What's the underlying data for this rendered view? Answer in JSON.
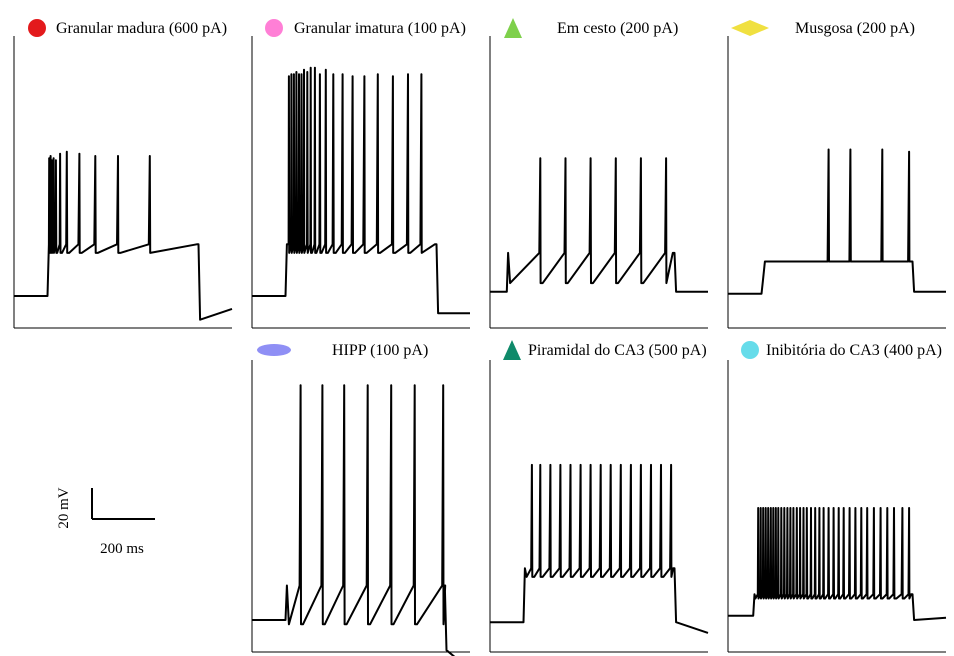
{
  "chart_data": [
    {
      "type": "line",
      "title": "Granular madura (600 pA)",
      "marker": {
        "shape": "circle",
        "color": "#e31a1c"
      },
      "baseline_mV": -72,
      "ylim": [
        -85,
        45
      ],
      "xlim": [
        0,
        1300
      ],
      "stim": {
        "on": 200,
        "off": 1100,
        "drop_mV": -83,
        "recovery_end_mV": -78
      },
      "spikes_ms": [
        210,
        218,
        226,
        236,
        250,
        275,
        315,
        390,
        485,
        620,
        810
      ],
      "peaks_mV": [
        -8,
        -7,
        -9,
        -8,
        -9,
        -6,
        -5,
        -6,
        -7,
        -7,
        -7
      ],
      "trough_mV": -52,
      "plateau_mV": -48,
      "ramp_mV": 0
    },
    {
      "type": "line",
      "title": "Granular imatura (100 pA)",
      "marker": {
        "shape": "circle",
        "color": "#ff7fd6"
      },
      "baseline_mV": -72,
      "ylim": [
        -85,
        45
      ],
      "xlim": [
        0,
        1300
      ],
      "stim": {
        "on": 200,
        "off": 1100,
        "drop_mV": -80,
        "recovery_end_mV": -80
      },
      "spikes_ms": [
        220,
        235,
        250,
        265,
        280,
        295,
        310,
        330,
        350,
        375,
        405,
        440,
        485,
        540,
        600,
        670,
        750,
        840,
        930,
        1010
      ],
      "peaks_mV": [
        30,
        31,
        31,
        32,
        31,
        31,
        33,
        32,
        34,
        34,
        31,
        33,
        31,
        31,
        30,
        30,
        31,
        30,
        31,
        31
      ],
      "trough_mV": -52,
      "plateau_mV": -48,
      "ramp_mV": 0
    },
    {
      "type": "line",
      "title": "Em cesto (200 pA)",
      "marker": {
        "shape": "triangle",
        "color": "#7ed04b"
      },
      "baseline_mV": -70,
      "ylim": [
        -85,
        45
      ],
      "xlim": [
        0,
        1300
      ],
      "stim": {
        "on": 100,
        "off": 1100,
        "drop_mV": -70,
        "recovery_end_mV": -70
      },
      "spikes_ms": [
        300,
        450,
        600,
        750,
        900,
        1050
      ],
      "peaks_mV": [
        -8,
        -8,
        -8,
        -8,
        -8,
        -8
      ],
      "trough_mV": -66,
      "plateau_mV": -52,
      "ramp_mV": 0
    },
    {
      "type": "line",
      "title": "Musgosa (200 pA)",
      "marker": {
        "shape": "diamond",
        "color": "#f0e040"
      },
      "baseline_mV": -71,
      "ylim": [
        -85,
        45
      ],
      "xlim": [
        0,
        1300
      ],
      "stim": {
        "on": 200,
        "off": 1100,
        "drop_mV": -70,
        "recovery_end_mV": -70
      },
      "spikes_ms": [
        600,
        730,
        920,
        1080
      ],
      "peaks_mV": [
        -4,
        -4,
        -4,
        -5
      ],
      "trough_mV": -56,
      "plateau_mV": -56,
      "ramp_mV": 9
    },
    {
      "type": "line",
      "title": "HIPP (100 pA)",
      "marker": {
        "shape": "ellipse",
        "color": "#8f8ff5"
      },
      "baseline_mV": -72,
      "ylim": [
        -85,
        45
      ],
      "xlim": [
        0,
        1300
      ],
      "stim": {
        "on": 200,
        "off": 1150,
        "drop_mV": -86,
        "recovery_end_mV": -95
      },
      "spikes_ms": [
        290,
        420,
        550,
        690,
        830,
        970,
        1140
      ],
      "peaks_mV": [
        37,
        37,
        37,
        37,
        37,
        37,
        37
      ],
      "trough_mV": -74,
      "plateau_mV": -56,
      "ramp_mV": 0
    },
    {
      "type": "line",
      "title": "Piramidal do CA3 (500 pA)",
      "marker": {
        "shape": "triangle",
        "color": "#0f8a6a"
      },
      "baseline_mV": -73,
      "ylim": [
        -85,
        45
      ],
      "xlim": [
        0,
        1300
      ],
      "stim": {
        "on": 200,
        "off": 1100,
        "drop_mV": -73,
        "recovery_end_mV": -78
      },
      "spikes_ms": [
        250,
        300,
        360,
        420,
        480,
        540,
        600,
        660,
        720,
        780,
        840,
        900,
        960,
        1020,
        1080
      ],
      "peaks_mV": [
        0,
        0,
        0,
        0,
        0,
        0,
        0,
        0,
        0,
        0,
        0,
        0,
        0,
        0,
        0
      ],
      "trough_mV": -52,
      "plateau_mV": -48,
      "ramp_mV": 0
    },
    {
      "type": "line",
      "title": "Inibitória do CA3 (400 pA)",
      "marker": {
        "shape": "circle",
        "color": "#66dcea"
      },
      "baseline_mV": -70,
      "ylim": [
        -85,
        45
      ],
      "xlim": [
        0,
        1300
      ],
      "stim": {
        "on": 150,
        "off": 1100,
        "drop_mV": -72,
        "recovery_end_mV": -71
      },
      "spikes_ms": [
        180,
        195,
        210,
        225,
        240,
        255,
        270,
        285,
        300,
        318,
        336,
        354,
        372,
        390,
        410,
        430,
        450,
        470,
        495,
        520,
        545,
        570,
        600,
        630,
        660,
        690,
        725,
        760,
        795,
        830,
        870,
        910,
        950,
        990,
        1040,
        1080
      ],
      "peaks_mV": [
        -20,
        -20,
        -20,
        -20,
        -20,
        -20,
        -20,
        -20,
        -20,
        -20,
        -20,
        -20,
        -20,
        -20,
        -20,
        -20,
        -20,
        -20,
        -20,
        -20,
        -20,
        -20,
        -20,
        -20,
        -20,
        -20,
        -20,
        -20,
        -20,
        -20,
        -20,
        -20,
        -20,
        -20,
        -20,
        -20
      ],
      "trough_mV": -62,
      "plateau_mV": -60,
      "ramp_mV": 0
    }
  ],
  "scale_bar": {
    "voltage_label": "20 mV",
    "time_label": "200 ms",
    "voltage_mV": 20,
    "time_ms": 200
  }
}
